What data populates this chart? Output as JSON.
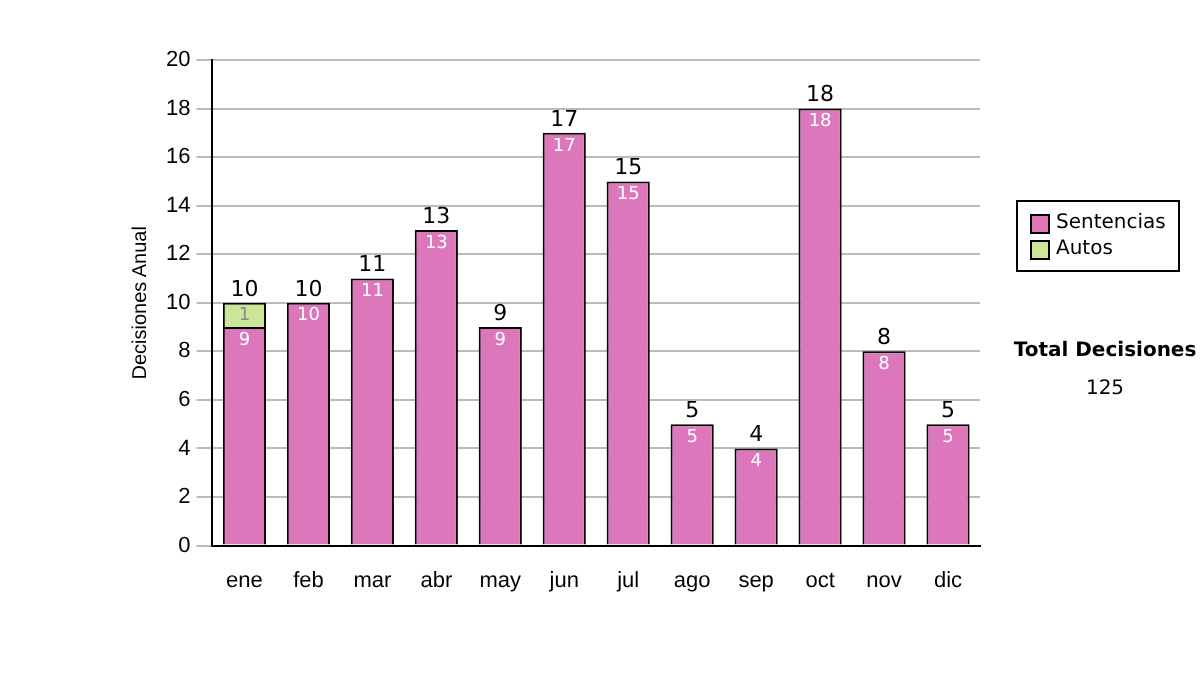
{
  "chart_data": {
    "type": "bar",
    "stacked": true,
    "ylabel": "Decisiones Anual",
    "categories": [
      "ene",
      "feb",
      "mar",
      "abr",
      "may",
      "jun",
      "jul",
      "ago",
      "sep",
      "oct",
      "nov",
      "dic"
    ],
    "series": [
      {
        "name": "Sentencias",
        "color": "#dd77bb",
        "values": [
          9,
          10,
          11,
          13,
          9,
          17,
          15,
          5,
          4,
          18,
          8,
          5
        ]
      },
      {
        "name": "Autos",
        "color": "#cce699",
        "values": [
          1,
          null,
          null,
          null,
          null,
          null,
          null,
          null,
          null,
          null,
          null,
          null
        ]
      }
    ],
    "ylim": [
      0,
      20
    ],
    "yticks": [
      0,
      2,
      4,
      6,
      8,
      10,
      12,
      14,
      16,
      18,
      20
    ],
    "grid": "y",
    "legend": "right",
    "data_labels": true,
    "totals": [
      "10",
      "10",
      "11",
      "13",
      "9",
      "17",
      "15",
      "5",
      "4",
      "18",
      "8",
      "5"
    ],
    "annotations": [
      "Total Decisiones",
      "125"
    ]
  }
}
